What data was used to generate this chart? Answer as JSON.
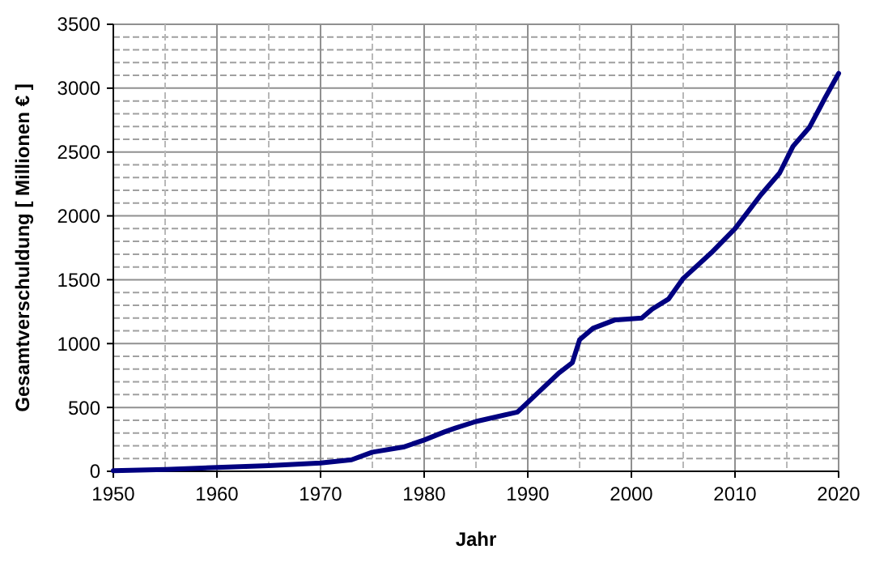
{
  "chart_data": {
    "type": "line",
    "xlabel": "Jahr",
    "ylabel": "Gesamtverschuldung [ Millionen € ]",
    "x": [
      1950,
      1955,
      1960,
      1965,
      1970,
      1973,
      1975,
      1978,
      1980,
      1982,
      1983,
      1985,
      1989,
      1990,
      1993,
      1994.3,
      1995,
      1996.3,
      1998.4,
      2001,
      2002,
      2003.6,
      2005,
      2007.7,
      2010,
      2012.5,
      2014.3,
      2015.6,
      2017.2,
      2018.7,
      2020
    ],
    "series": [
      {
        "color": "#000080",
        "values": [
          5,
          15,
          30,
          45,
          65,
          90,
          150,
          190,
          245,
          310,
          338,
          390,
          464,
          540,
          770,
          850,
          1030,
          1120,
          1185,
          1200,
          1270,
          1350,
          1510,
          1710,
          1900,
          2165,
          2335,
          2545,
          2695,
          2925,
          3115
        ]
      }
    ],
    "xlim": [
      1950,
      2020
    ],
    "xticks": [
      1950,
      {
        "value": 1955,
        "label": null
      },
      1960,
      {
        "value": 1965,
        "label": null
      },
      1970,
      {
        "value": 1975,
        "label": null
      },
      1980,
      {
        "value": 1985,
        "label": null
      },
      1990,
      {
        "value": 1995,
        "label": null
      },
      2000,
      {
        "value": 2005,
        "label": null
      },
      2010,
      {
        "value": 2015,
        "label": null
      },
      2020
    ],
    "ylim": [
      0,
      3500
    ],
    "yticks": [
      0,
      {
        "value": 100,
        "label": null
      },
      {
        "value": 200,
        "label": null
      },
      {
        "value": 300,
        "label": null
      },
      {
        "value": 400,
        "label": null
      },
      500,
      {
        "value": 600,
        "label": null
      },
      {
        "value": 700,
        "label": null
      },
      {
        "value": 800,
        "label": null
      },
      {
        "value": 900,
        "label": null
      },
      1000,
      {
        "value": 1100,
        "label": null
      },
      {
        "value": 1200,
        "label": null
      },
      {
        "value": 1300,
        "label": null
      },
      {
        "value": 1400,
        "label": null
      },
      1500,
      {
        "value": 1600,
        "label": null
      },
      {
        "value": 1700,
        "label": null
      },
      {
        "value": 1800,
        "label": null
      },
      {
        "value": 1900,
        "label": null
      },
      2000,
      {
        "value": 2100,
        "label": null
      },
      {
        "value": 2200,
        "label": null
      },
      {
        "value": 2300,
        "label": null
      },
      {
        "value": 2400,
        "label": null
      },
      2500,
      {
        "value": 2600,
        "label": null
      },
      {
        "value": 2700,
        "label": null
      },
      {
        "value": 2800,
        "label": null
      },
      {
        "value": 2900,
        "label": null
      },
      3000,
      {
        "value": 3100,
        "label": null
      },
      {
        "value": 3200,
        "label": null
      },
      {
        "value": 3300,
        "label": null
      },
      {
        "value": 3400,
        "label": null
      },
      3500
    ],
    "grid": true,
    "marker": "none",
    "line_style": "solid"
  }
}
